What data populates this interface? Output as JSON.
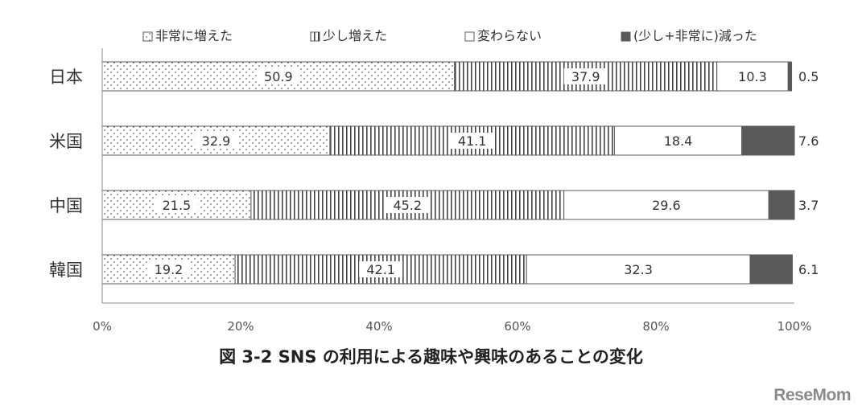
{
  "chart_data": {
    "type": "stacked-bar-horizontal",
    "categories": [
      "日本",
      "米国",
      "中国",
      "韓国"
    ],
    "series": [
      {
        "name": "非常に増えた",
        "pattern": "dots",
        "values": [
          50.9,
          32.9,
          21.5,
          19.2
        ]
      },
      {
        "name": "少し増えた",
        "pattern": "vertical-lines",
        "values": [
          37.9,
          41.1,
          45.2,
          42.1
        ]
      },
      {
        "name": "変わらない",
        "pattern": "white",
        "values": [
          10.3,
          18.4,
          29.6,
          32.3
        ]
      },
      {
        "name": "(少し+非常に)減った",
        "pattern": "solid-dark",
        "values": [
          0.5,
          7.6,
          3.7,
          6.1
        ]
      }
    ],
    "x_ticks": [
      "0%",
      "20%",
      "40%",
      "60%",
      "80%",
      "100%"
    ],
    "xlim": [
      0,
      100
    ],
    "legend_position": "top",
    "grid": false
  },
  "caption": "図 3-2  SNS の利用による趣味や興味のあることの変化",
  "watermark": "ReseMom",
  "colors": {
    "dark_fill": "#595959",
    "outline": "#595959",
    "text": "#333333"
  }
}
